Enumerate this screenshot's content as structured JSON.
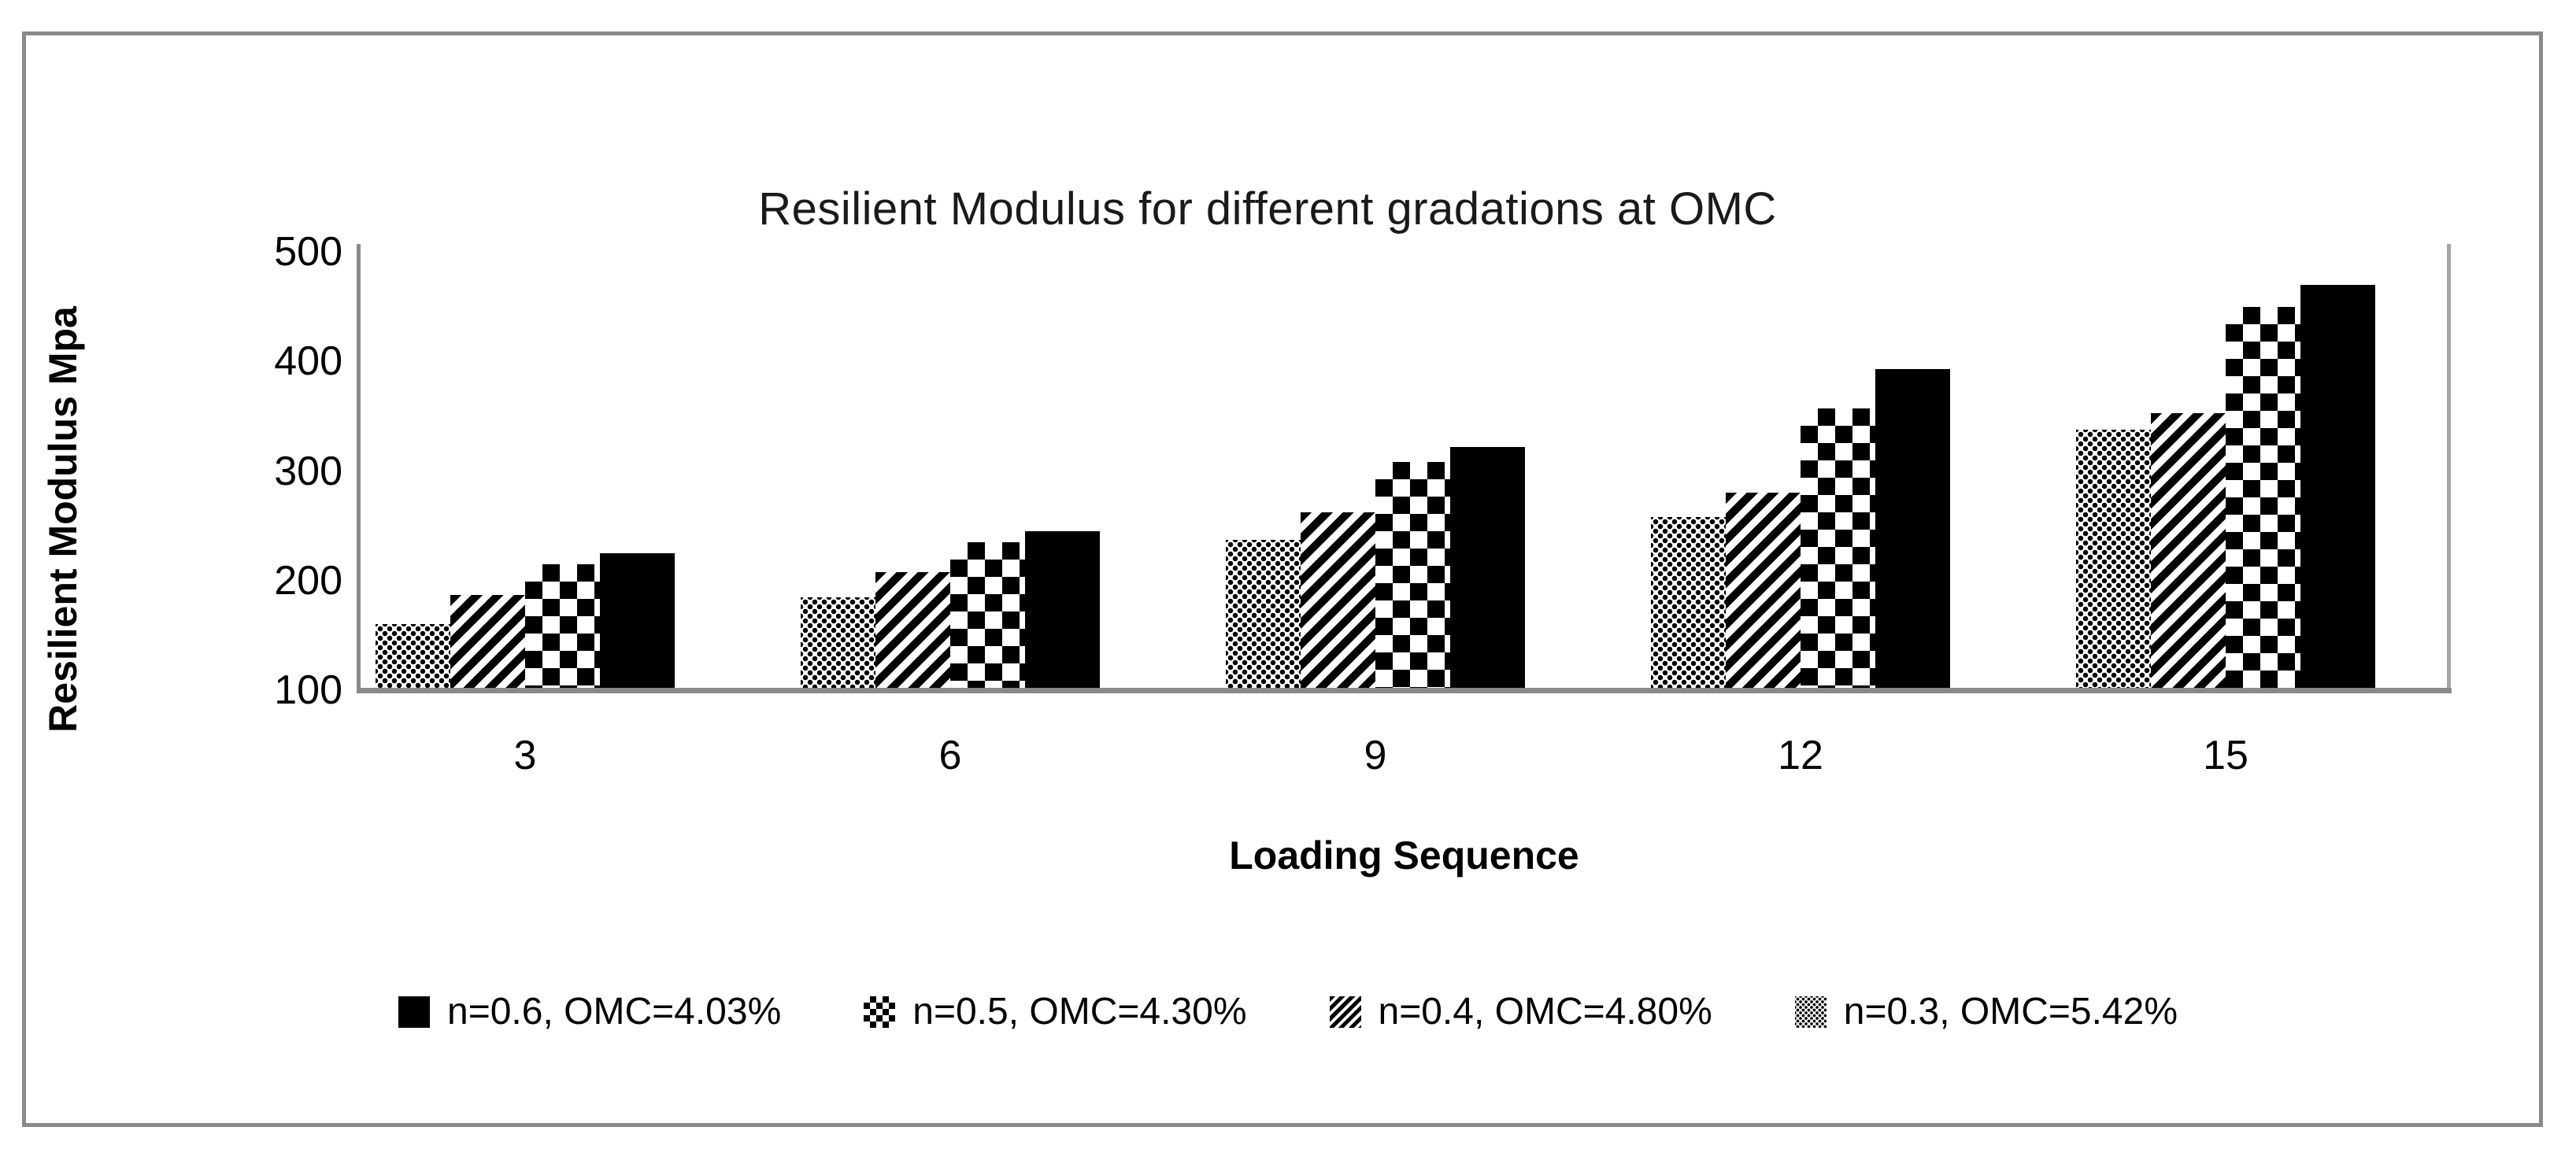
{
  "figure": {
    "frame_color": "#8a8a8a",
    "background": "#ffffff"
  },
  "chart_data": {
    "type": "bar",
    "title": "Resilient Modulus for different gradations at OMC",
    "xlabel": "Loading Sequence",
    "ylabel": "Resilient Modulus Mpa",
    "categories": [
      "3",
      "6",
      "9",
      "12",
      "15"
    ],
    "yticks": [
      500,
      400,
      300,
      200,
      100
    ],
    "ylim": [
      100,
      500
    ],
    "baseline": 100,
    "grid": false,
    "legend_position": "bottom",
    "series": [
      {
        "name": "n=0.6, OMC=4.03%",
        "pattern": "solid",
        "values": [
          225,
          245,
          322,
          393,
          470
        ]
      },
      {
        "name": "n=0.5, OMC=4.30%",
        "pattern": "checker",
        "values": [
          215,
          235,
          308,
          357,
          450
        ]
      },
      {
        "name": "n=0.4, OMC=4.80%",
        "pattern": "diagonal",
        "values": [
          187,
          208,
          262,
          280,
          353
        ]
      },
      {
        "name": "n=0.3, OMC=5.42%",
        "pattern": "dots",
        "values": [
          160,
          185,
          237,
          258,
          338
        ]
      }
    ],
    "bar_draw_order_left_to_right": [
      "n=0.3, OMC=5.42%",
      "n=0.4, OMC=4.80%",
      "n=0.5, OMC=4.30%",
      "n=0.6, OMC=4.03%"
    ],
    "colors": {
      "bars": "#000000",
      "axis": "#8a8a8a",
      "text": "#000000"
    }
  }
}
